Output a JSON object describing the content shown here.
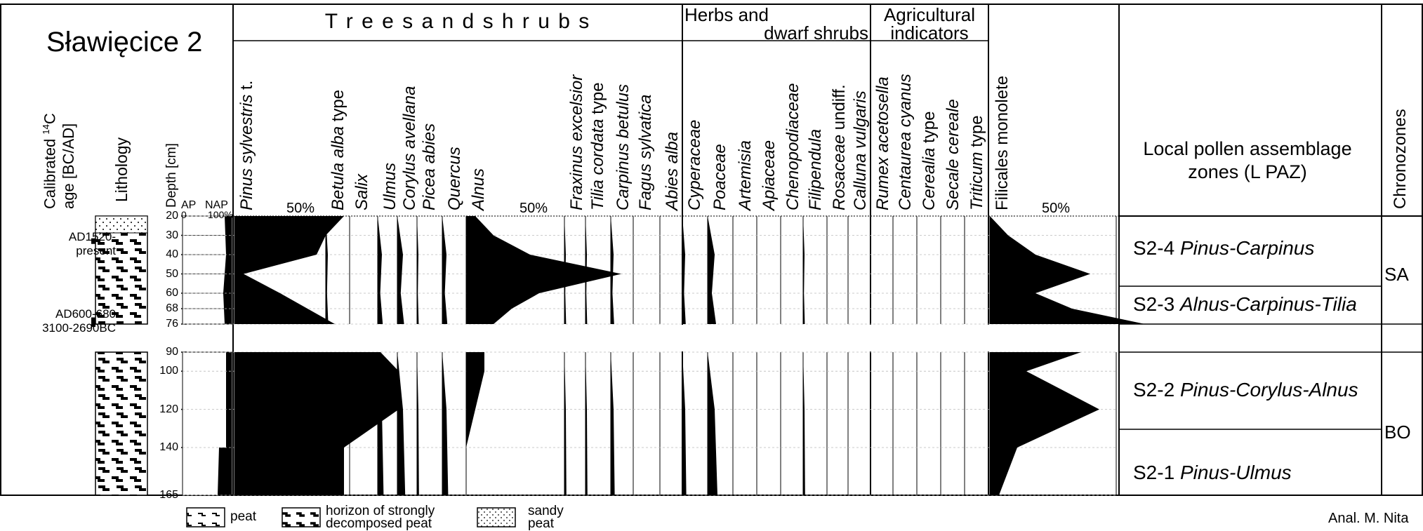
{
  "site_title": "Sławięcice 2",
  "headers": {
    "calibrated_age_1": "Calibrated ",
    "calibrated_age_sup": "14",
    "calibrated_age_2": "C",
    "calibrated_age_3": "age [BC/AD]",
    "lithology": "Lithology",
    "depth": "Depth [cm]",
    "ap": "AP",
    "nap": "NAP",
    "ap_nap_0": "0",
    "ap_nap_100": "100%",
    "lpaz": "Local pollen assemblage zones (L PAZ)",
    "lpaz_line1": "Local pollen assemblage",
    "lpaz_line2": "zones (L PAZ)",
    "chronozones": "Chronozones"
  },
  "groups": {
    "trees": "T r e e s     a n d     s h r u b s",
    "herbs_1": "Herbs and",
    "herbs_2": "dwarf shrubs",
    "agri_1": "Agricultural",
    "agri_2": "indicators"
  },
  "taxa": {
    "pinus": [
      "Pinus sylvestris",
      " t."
    ],
    "betula": [
      "Betula alba",
      " type"
    ],
    "salix": [
      "Salix",
      ""
    ],
    "ulmus": [
      "Ulmus",
      ""
    ],
    "corylus": [
      "Corylus avellana",
      ""
    ],
    "picea": [
      "Picea abies",
      ""
    ],
    "quercus": [
      "Quercus",
      ""
    ],
    "alnus": [
      "Alnus",
      ""
    ],
    "fraxinus": [
      "Fraxinus excelsior",
      ""
    ],
    "tilia": [
      "Tilia cordata",
      " type"
    ],
    "carpinus": [
      "Carpinus betulus",
      ""
    ],
    "fagus": [
      "Fagus sylvatica",
      ""
    ],
    "abies": [
      "Abies alba",
      ""
    ],
    "cyperaceae": [
      "Cyperaceae",
      ""
    ],
    "poaceae": [
      "Poaceae",
      ""
    ],
    "artemisia": [
      "Artemisia",
      ""
    ],
    "apiaceae": [
      "Apiaceae",
      ""
    ],
    "chenopodiaceae": [
      "Chenopodiaceae",
      ""
    ],
    "filipendula": [
      "Filipendula",
      ""
    ],
    "rosaceae": [
      "Rosaceae",
      " undiff."
    ],
    "calluna": [
      "Calluna vulgaris",
      ""
    ],
    "rumex": [
      "Rumex acetosella",
      ""
    ],
    "centaurea": [
      "Centaurea cyanus",
      ""
    ],
    "cerealia": [
      "Cerealia",
      " type"
    ],
    "secale": [
      "Secale cereale",
      ""
    ],
    "triticum": [
      "Triticum",
      " type"
    ],
    "filicales": [
      "",
      "Filicales monolete"
    ]
  },
  "percent_labels": {
    "pinus": "50%",
    "alnus": "50%",
    "filicales": "50%"
  },
  "depth_ticks": [
    "20",
    "30",
    "40",
    "50",
    "60",
    "68",
    "76",
    "90",
    "100",
    "120",
    "140",
    "165"
  ],
  "dates": {
    "d1_line1": "AD1520-",
    "d1_line2": "present",
    "d2": "AD600-680",
    "d3": "3100-2690BC"
  },
  "zones": [
    {
      "code": "S2-4",
      "name": "Pinus-Carpinus"
    },
    {
      "code": "S2-3",
      "name": "Alnus-Carpinus-Tilia"
    },
    {
      "code": "S2-2",
      "name": "Pinus-Corylus-Alnus"
    },
    {
      "code": "S2-1",
      "name": "Pinus-Ulmus"
    }
  ],
  "chronozones": [
    "SA",
    "BO"
  ],
  "legend": {
    "peat": "peat",
    "horizon_1": "horizon of strongly",
    "horizon_2": "decomposed peat",
    "sandy_1": "sandy",
    "sandy_2": "peat"
  },
  "author": "Anal. M. Nita",
  "colors": {
    "fill": "#000000",
    "line": "#000000",
    "grid": "#bbbbbb"
  },
  "chart_data": {
    "type": "area",
    "x_unit": "Depth [cm]",
    "depths": [
      20,
      30,
      40,
      50,
      60,
      68,
      76,
      90,
      100,
      120,
      140,
      165
    ],
    "series": [
      {
        "name": "Pinus sylvestris t.",
        "values": [
          60,
          50,
          45,
          5,
          25,
          40,
          55,
          80,
          90,
          90,
          60,
          60
        ]
      },
      {
        "name": "Alnus",
        "values": [
          5,
          15,
          35,
          85,
          40,
          25,
          15,
          10,
          10,
          5,
          0,
          0
        ]
      },
      {
        "name": "Filicales monolete",
        "values": [
          0,
          10,
          25,
          55,
          25,
          45,
          85,
          50,
          20,
          60,
          15,
          5
        ]
      }
    ]
  }
}
